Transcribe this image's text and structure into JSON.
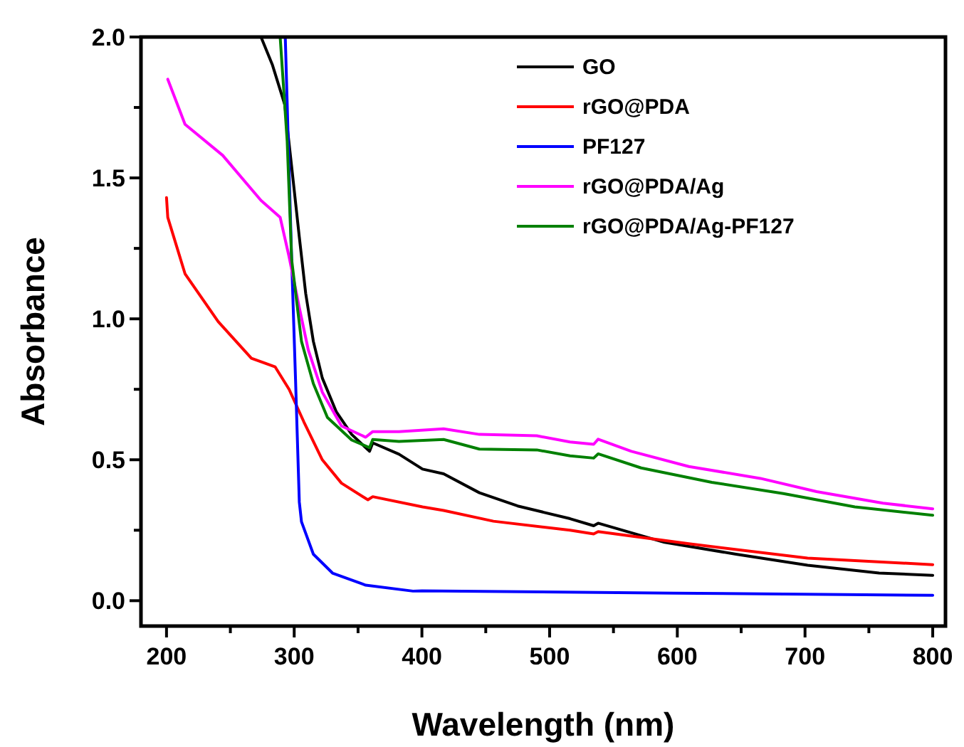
{
  "chart_data": {
    "type": "line",
    "xlabel": "Wavelength (nm)",
    "ylabel": "Absorbance",
    "xlim": [
      180,
      810
    ],
    "ylim": [
      -0.09,
      2.0
    ],
    "xticks": [
      200,
      {
        "value": 250,
        "label": null
      },
      300,
      {
        "value": 350,
        "label": null
      },
      400,
      {
        "value": 450,
        "label": null
      },
      500,
      {
        "value": 550,
        "label": null
      },
      600,
      {
        "value": 650,
        "label": null
      },
      700,
      {
        "value": 750,
        "label": null
      },
      800
    ],
    "yticks": [
      {
        "value": 0,
        "label": "0.0"
      },
      {
        "value": 0.25,
        "label": null
      },
      {
        "value": 0.5,
        "label": "0.5"
      },
      {
        "value": 0.75,
        "label": null
      },
      {
        "value": 1,
        "label": "1.0"
      },
      {
        "value": 1.25,
        "label": null
      },
      {
        "value": 1.5,
        "label": "1.5"
      },
      {
        "value": 1.75,
        "label": null
      },
      {
        "value": 2,
        "label": "2.0"
      }
    ],
    "grid": false,
    "legend": "top right",
    "marker": "none",
    "line_style": "solid",
    "series": [
      {
        "name": "GO",
        "color": "#000000",
        "x": [
          274,
          283,
          292.6,
          298,
          304,
          309,
          315,
          322,
          333,
          345,
          359,
          361.5,
          382,
          400.5,
          417,
          445,
          475,
          516,
          534.5,
          538,
          590,
          646,
          702,
          758,
          800
        ],
        "values": [
          2.0,
          1.9,
          1.76,
          1.54,
          1.29,
          1.09,
          0.92,
          0.79,
          0.67,
          0.59,
          0.53,
          0.56,
          0.52,
          0.467,
          0.45,
          0.383,
          0.336,
          0.291,
          0.266,
          0.275,
          0.207,
          0.165,
          0.126,
          0.098,
          0.09
        ]
      },
      {
        "name": "rGO@PDA",
        "color": "#ff0000",
        "x": [
          200,
          201,
          214.5,
          240.5,
          266.5,
          285,
          296,
          307.5,
          322,
          337,
          357.7,
          361.5,
          400.5,
          417,
          456,
          516,
          534.5,
          538,
          609,
          702,
          800
        ],
        "values": [
          1.43,
          1.36,
          1.16,
          0.99,
          0.86,
          0.83,
          0.75,
          0.635,
          0.5,
          0.417,
          0.358,
          0.369,
          0.333,
          0.32,
          0.282,
          0.25,
          0.237,
          0.245,
          0.202,
          0.151,
          0.128
        ]
      },
      {
        "name": "PF127",
        "color": "#0000ff",
        "x": [
          293,
          298,
          301,
          304,
          305.7,
          315,
          330,
          356,
          393,
          400,
          597,
          800
        ],
        "values": [
          2.0,
          1.21,
          0.79,
          0.35,
          0.28,
          0.165,
          0.098,
          0.055,
          0.034,
          0.035,
          0.027,
          0.019
        ]
      },
      {
        "name": "rGO@PDA/Ag",
        "color": "#ff00ff",
        "x": [
          201,
          214.5,
          244,
          274,
          289,
          296,
          304,
          311,
          322,
          337,
          356,
          361.5,
          382,
          417,
          445,
          490,
          516,
          534.5,
          538,
          564,
          609,
          665,
          709,
          761,
          800
        ],
        "values": [
          1.85,
          1.69,
          1.58,
          1.42,
          1.36,
          1.22,
          1.04,
          0.89,
          0.74,
          0.62,
          0.58,
          0.6,
          0.6,
          0.61,
          0.59,
          0.585,
          0.563,
          0.555,
          0.573,
          0.53,
          0.476,
          0.434,
          0.387,
          0.346,
          0.326
        ]
      },
      {
        "name": "rGO@PDA/Ag-PF127",
        "color": "#008000",
        "x": [
          289,
          294.5,
          298,
          305.7,
          315,
          326,
          345,
          359,
          361.5,
          382,
          417,
          445,
          490,
          516,
          534.5,
          538,
          571.7,
          627,
          683,
          739,
          800
        ],
        "values": [
          2.0,
          1.63,
          1.21,
          0.92,
          0.77,
          0.65,
          0.57,
          0.543,
          0.572,
          0.565,
          0.572,
          0.538,
          0.535,
          0.514,
          0.506,
          0.521,
          0.471,
          0.42,
          0.38,
          0.333,
          0.303
        ]
      }
    ]
  }
}
